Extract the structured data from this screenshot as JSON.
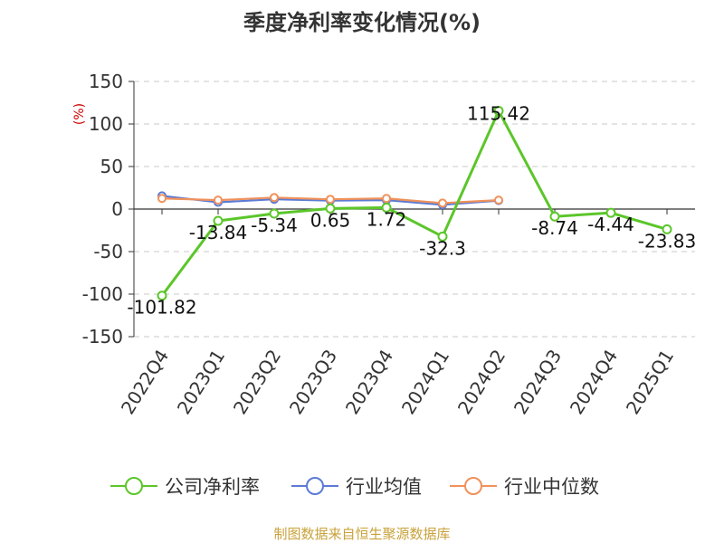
{
  "chart_data": {
    "type": "line",
    "title": "季度净利率变化情况(%)",
    "ylabel": "(%)",
    "categories": [
      "2022Q4",
      "2023Q1",
      "2023Q2",
      "2023Q3",
      "2023Q4",
      "2024Q1",
      "2024Q2",
      "2024Q3",
      "2024Q4",
      "2025Q1"
    ],
    "ylim": [
      -150,
      150
    ],
    "yticks": [
      150,
      100,
      50,
      0,
      -50,
      -100,
      -150
    ],
    "grid": true,
    "legend_position": "bottom",
    "series": [
      {
        "name": "公司净利率",
        "color": "#5bc62a",
        "values": [
          -101.82,
          -13.84,
          -5.34,
          0.65,
          1.72,
          -32.3,
          115.42,
          -8.74,
          -4.44,
          -23.83
        ],
        "labels": [
          "-101.82",
          "-13.84",
          "-5.34",
          "0.65",
          "1.72",
          "-32.3",
          "115.42",
          "-8.74",
          "-4.44",
          "-23.83"
        ]
      },
      {
        "name": "行业均值",
        "color": "#5b7bd5",
        "values": [
          15.5,
          8.0,
          11.5,
          10.0,
          10.5,
          5.0,
          10.0,
          null,
          null,
          null
        ]
      },
      {
        "name": "行业中位数",
        "color": "#f0915a",
        "values": [
          12.5,
          10.5,
          13.5,
          11.5,
          12.5,
          7.0,
          10.5,
          null,
          null,
          null
        ]
      }
    ]
  },
  "source_note": "制图数据来自恒生聚源数据库"
}
